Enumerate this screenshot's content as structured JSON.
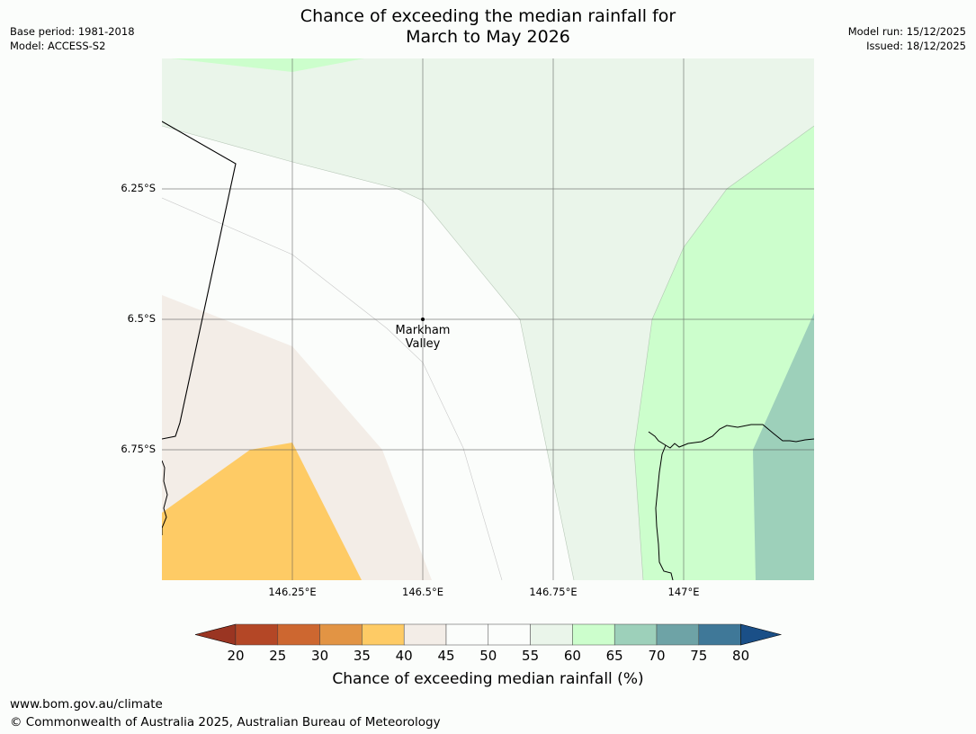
{
  "header": {
    "title_line1": "Chance of exceeding the median rainfall for",
    "title_line2": "March to May 2026",
    "base_period": "Base period: 1981-2018",
    "model": "Model: ACCESS-S2",
    "model_run": "Model run: 15/12/2025",
    "issued": "Issued: 18/12/2025"
  },
  "map": {
    "lat_labels": [
      "6.25°S",
      "6.5°S",
      "6.75°S"
    ],
    "lon_labels": [
      "146.25°E",
      "146.5°E",
      "146.75°E",
      "147°E"
    ],
    "place": {
      "name_line1": "Markham",
      "name_line2": "Valley"
    },
    "colors": {
      "p35_40": "#fecb65",
      "p40_45": "#f3ede7",
      "p45_55": "#fbfdfb",
      "p55_60": "#eaf5ea",
      "p60_65": "#ccfecc",
      "p65_70": "#9dd0ba"
    }
  },
  "colorbar": {
    "label": "Chance of exceeding median rainfall (%)",
    "ticks": [
      "20",
      "25",
      "30",
      "35",
      "40",
      "45",
      "50",
      "55",
      "60",
      "65",
      "70",
      "75",
      "80"
    ],
    "colors": [
      "#9a3522",
      "#b44726",
      "#cd6730",
      "#e29444",
      "#fecb65",
      "#f3ede7",
      "#fbfdfb",
      "#fbfdfb",
      "#eaf5ea",
      "#ccfecc",
      "#9dd0ba",
      "#6ea3a6",
      "#3f7898",
      "#1a4f87"
    ]
  },
  "footer": {
    "url": "www.bom.gov.au/climate",
    "copyright": "© Commonwealth of Australia 2025, Australian Bureau of Meteorology"
  }
}
